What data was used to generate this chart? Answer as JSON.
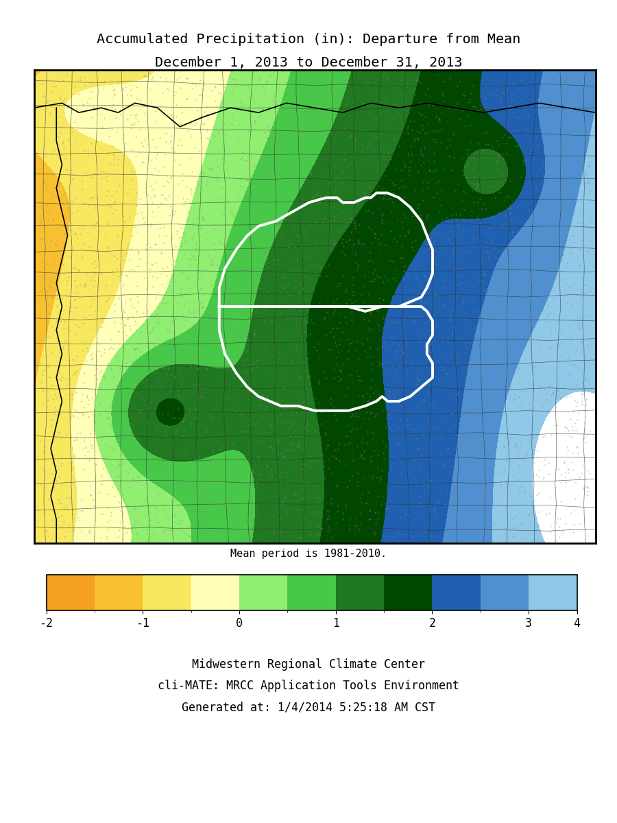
{
  "title_line1": "Accumulated Precipitation (in): Departure from Mean",
  "title_line2": "December 1, 2013 to December 31, 2013",
  "mean_period_text": "Mean period is 1981-2010.",
  "footer_line1": "Midwestern Regional Climate Center",
  "footer_line2": "cli-MATE: MRCC Application Tools Environment",
  "footer_line3": "Generated at: 1/4/2014 5:25:18 AM CST",
  "colorbar_ticks": [
    -2,
    -1,
    0,
    1,
    2,
    3,
    4
  ],
  "colorbar_colors": [
    "#F5A020",
    "#F8C030",
    "#F8E860",
    "#FFFFB8",
    "#90EE70",
    "#48C848",
    "#207820",
    "#004800",
    "#2060B0",
    "#5090D0",
    "#90C8E8"
  ],
  "colorbar_bounds": [
    -2.0,
    -1.5,
    -1.0,
    -0.5,
    0.0,
    0.5,
    1.0,
    1.5,
    2.0,
    2.5,
    3.0,
    4.0
  ],
  "map_bg": "#ffffff",
  "figure_bg": "#ffffff"
}
